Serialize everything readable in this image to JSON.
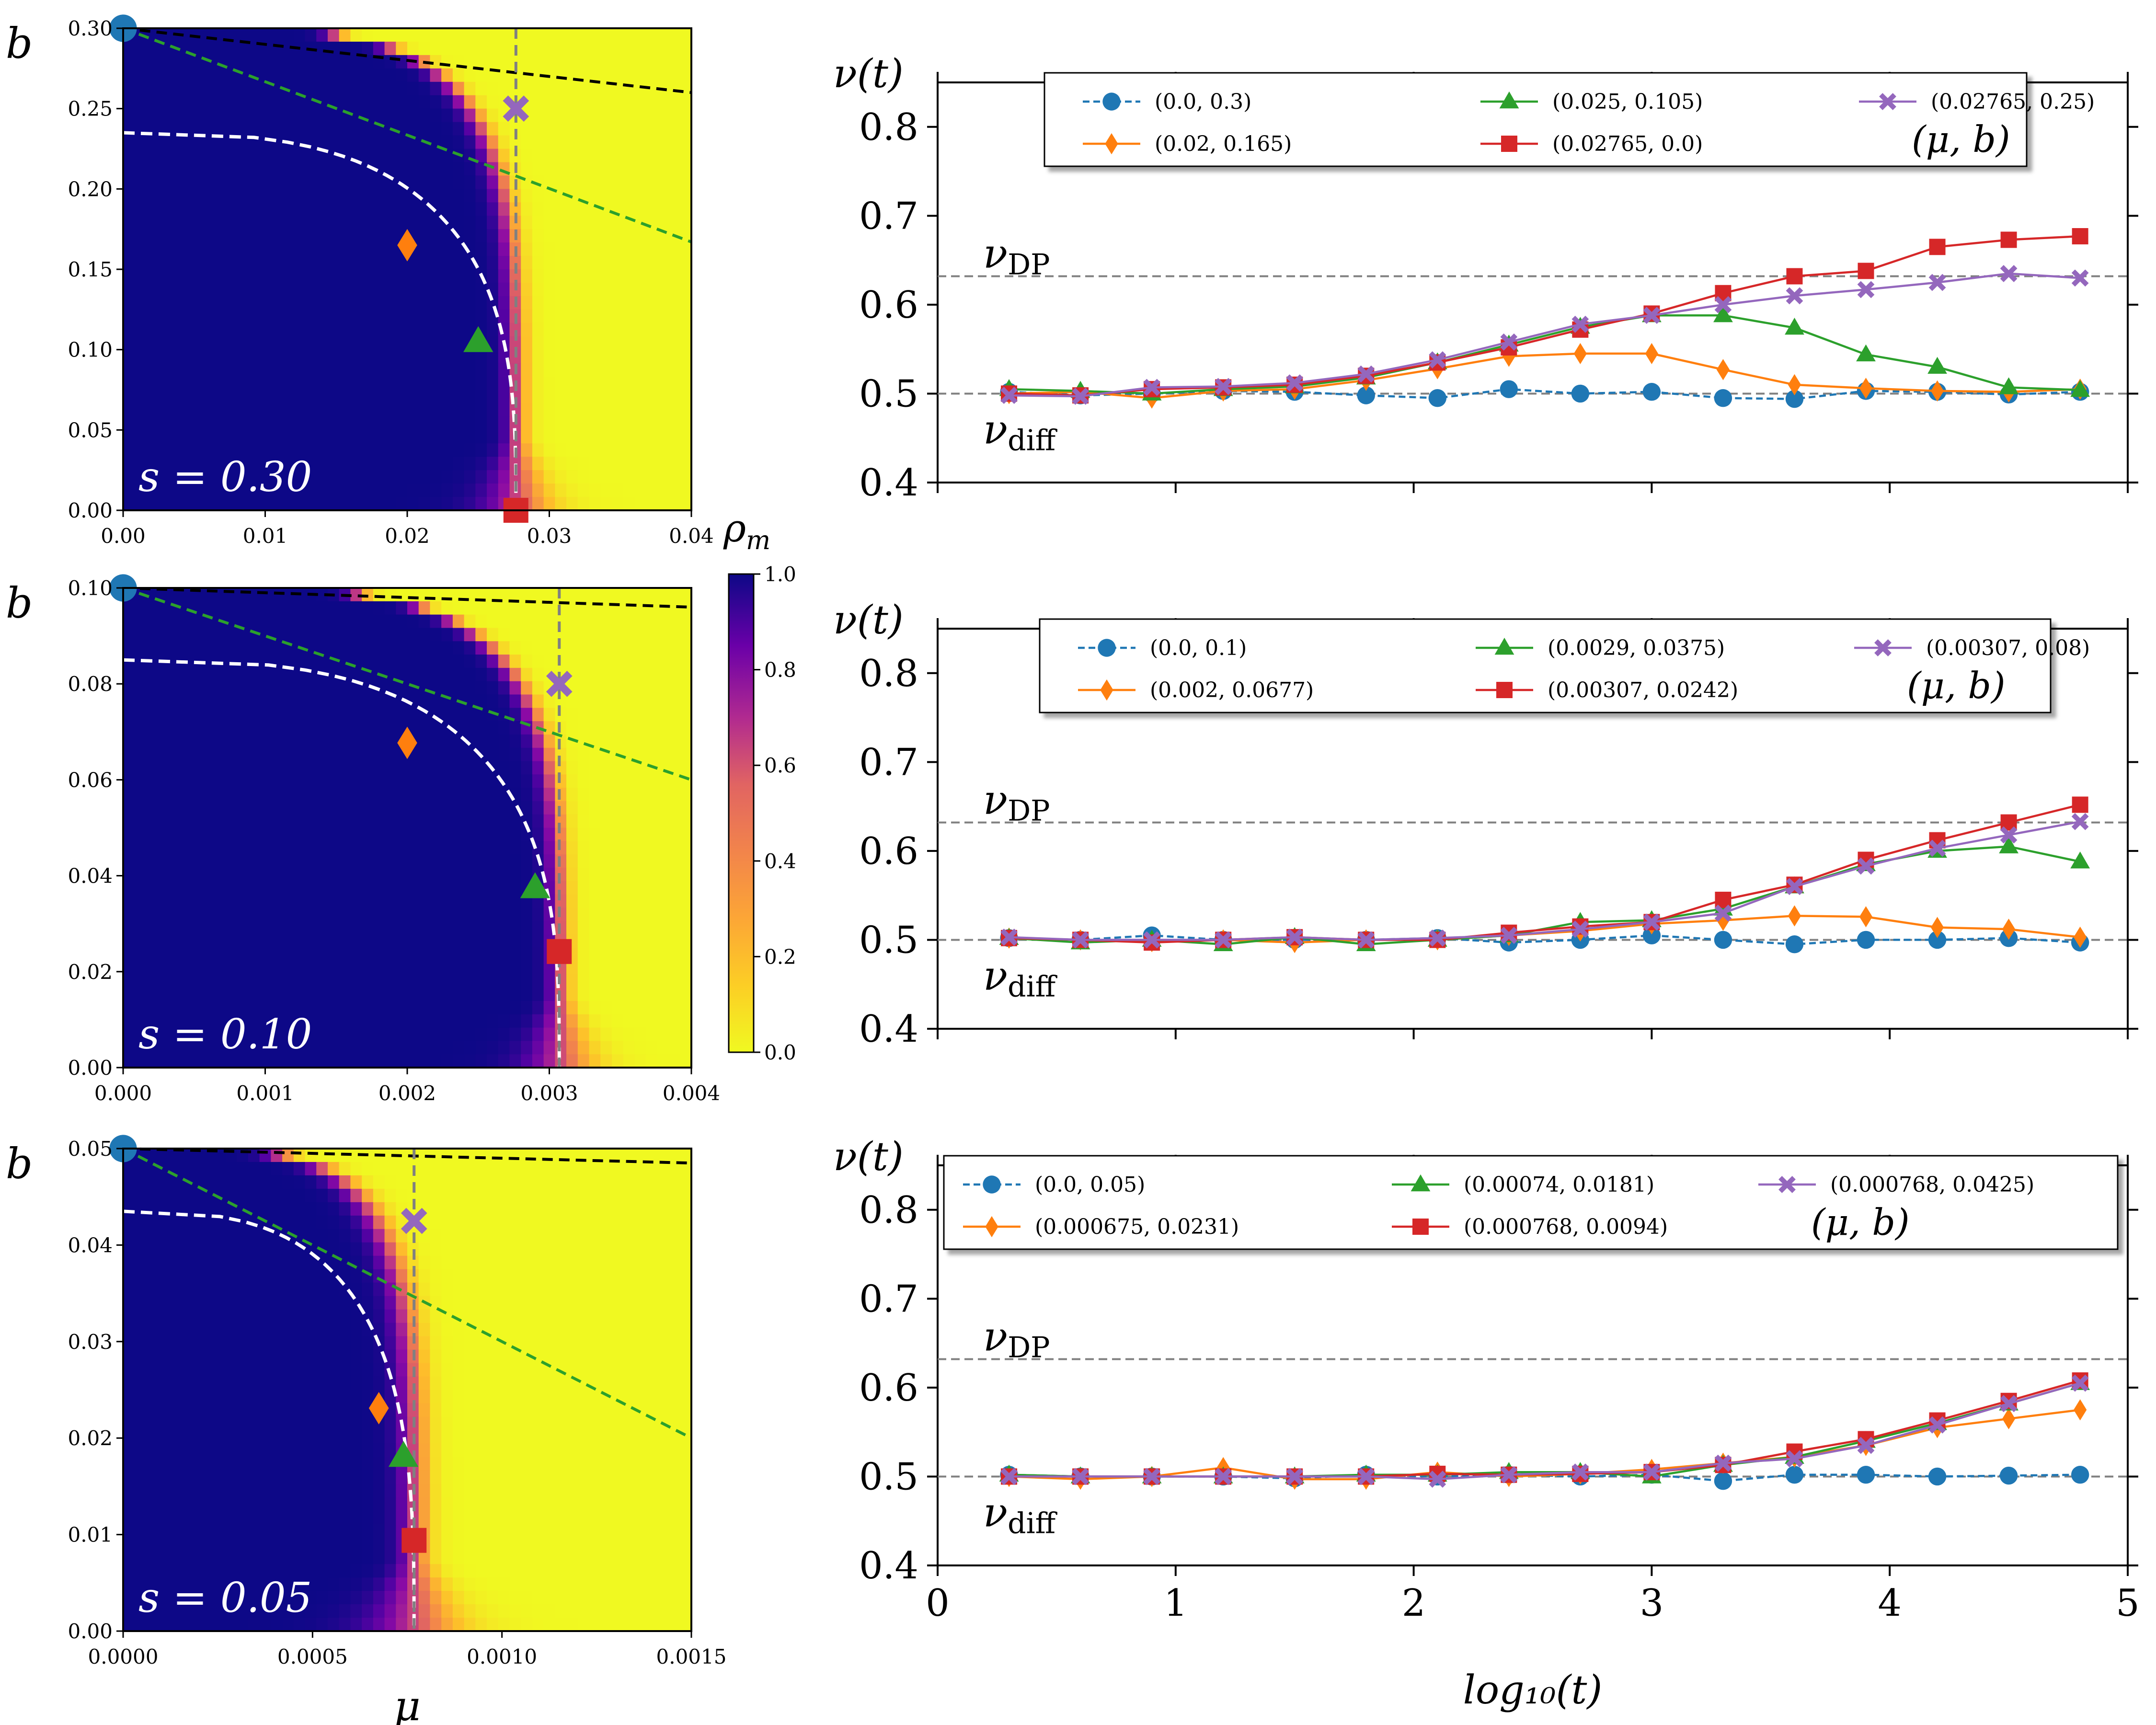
{
  "colors": {
    "blue": "#1f77b4",
    "orange": "#ff7f0e",
    "green": "#2ca02c",
    "red": "#d62728",
    "purple": "#9467bd",
    "gray": "#808080",
    "black": "#000000",
    "dark_navy": "#0d0887",
    "yellow": "#f0f921"
  },
  "colorbar": {
    "label": "ρ_m",
    "label_main": "ρ",
    "label_sub": "m",
    "ticks": [
      0.0,
      0.2,
      0.4,
      0.6,
      0.8,
      1.0
    ],
    "tick_labels": [
      "0.0",
      "0.2",
      "0.4",
      "0.6",
      "0.8",
      "1.0"
    ],
    "vmin": 0.0,
    "vmax": 1.0
  },
  "chart_data": [
    {
      "type": "heatmap",
      "title": "s = 0.30",
      "s_label": "s = 0.30",
      "s": 0.3,
      "xlabel": "",
      "ylabel": "b",
      "xlim": [
        0.0,
        0.04
      ],
      "ylim": [
        0.0,
        0.3
      ],
      "xticks": [
        0.0,
        0.01,
        0.02,
        0.03,
        0.04
      ],
      "xtick_labels": [
        "0.00",
        "0.01",
        "0.02",
        "0.03",
        "0.04"
      ],
      "yticks": [
        0.0,
        0.05,
        0.1,
        0.15,
        0.2,
        0.25,
        0.3
      ],
      "ytick_labels": [
        "0.00",
        "0.05",
        "0.10",
        "0.15",
        "0.20",
        "0.25",
        "0.30"
      ],
      "field": {
        "mu_c": 0.02765,
        "b_c": 0.3,
        "b_dashed": 0.235,
        "dip": 0.003,
        "edge_width": 0.03
      },
      "black_line": [
        [
          0.0,
          0.3
        ],
        [
          0.04,
          0.26
        ]
      ],
      "green_line": [
        [
          0.0,
          0.3
        ],
        [
          0.04,
          0.167
        ]
      ],
      "vertical_line_mu": 0.02765,
      "points": [
        {
          "mu": 0.0,
          "b": 0.3,
          "marker": "circle",
          "color": "blue"
        },
        {
          "mu": 0.02,
          "b": 0.165,
          "marker": "diamond",
          "color": "orange"
        },
        {
          "mu": 0.025,
          "b": 0.105,
          "marker": "triangle",
          "color": "green"
        },
        {
          "mu": 0.02765,
          "b": 0.0,
          "marker": "square",
          "color": "red"
        },
        {
          "mu": 0.02765,
          "b": 0.25,
          "marker": "x",
          "color": "purple"
        }
      ]
    },
    {
      "type": "heatmap",
      "title": "s = 0.10",
      "s_label": "s = 0.10",
      "s": 0.1,
      "xlabel": "",
      "ylabel": "b",
      "xlim": [
        0.0,
        0.004
      ],
      "ylim": [
        0.0,
        0.1
      ],
      "xticks": [
        0.0,
        0.001,
        0.002,
        0.003,
        0.004
      ],
      "xtick_labels": [
        "0.000",
        "0.001",
        "0.002",
        "0.003",
        "0.004"
      ],
      "yticks": [
        0.0,
        0.02,
        0.04,
        0.06,
        0.08,
        0.1
      ],
      "ytick_labels": [
        "0.00",
        "0.02",
        "0.04",
        "0.06",
        "0.08",
        "0.10"
      ],
      "field": {
        "mu_c": 0.00307,
        "b_c": 0.1,
        "b_dashed": 0.085,
        "dip": 0.00055,
        "edge_width": 0.03
      },
      "black_line": [
        [
          0.0,
          0.1
        ],
        [
          0.004,
          0.096
        ]
      ],
      "green_line": [
        [
          0.0,
          0.1
        ],
        [
          0.004,
          0.06
        ]
      ],
      "vertical_line_mu": 0.00307,
      "points": [
        {
          "mu": 0.0,
          "b": 0.1,
          "marker": "circle",
          "color": "blue"
        },
        {
          "mu": 0.002,
          "b": 0.0677,
          "marker": "diamond",
          "color": "orange"
        },
        {
          "mu": 0.0029,
          "b": 0.0375,
          "marker": "triangle",
          "color": "green"
        },
        {
          "mu": 0.00307,
          "b": 0.0242,
          "marker": "square",
          "color": "red"
        },
        {
          "mu": 0.00307,
          "b": 0.08,
          "marker": "x",
          "color": "purple"
        }
      ]
    },
    {
      "type": "heatmap",
      "title": "s = 0.05",
      "s_label": "s = 0.05",
      "s": 0.05,
      "xlabel": "μ",
      "ylabel": "b",
      "xlim": [
        0.0,
        0.0015
      ],
      "ylim": [
        0.0,
        0.05
      ],
      "xticks": [
        0.0,
        0.0005,
        0.001,
        0.0015
      ],
      "xtick_labels": [
        "0.0000",
        "0.0005",
        "0.0010",
        "0.0015"
      ],
      "yticks": [
        0.0,
        0.01,
        0.02,
        0.03,
        0.04,
        0.05
      ],
      "ytick_labels": [
        "0.00",
        "0.01",
        "0.02",
        "0.03",
        "0.04",
        "0.05"
      ],
      "field": {
        "mu_c": 0.000768,
        "b_c": 0.05,
        "b_dashed": 0.0435,
        "dip": 0.00055,
        "edge_width": 0.04
      },
      "black_line": [
        [
          0.0,
          0.05
        ],
        [
          0.0015,
          0.0485
        ]
      ],
      "green_line": [
        [
          0.0,
          0.05
        ],
        [
          0.0015,
          0.02
        ]
      ],
      "vertical_line_mu": 0.000768,
      "points": [
        {
          "mu": 0.0,
          "b": 0.05,
          "marker": "circle",
          "color": "blue"
        },
        {
          "mu": 0.000675,
          "b": 0.0231,
          "marker": "diamond",
          "color": "orange"
        },
        {
          "mu": 0.00074,
          "b": 0.0181,
          "marker": "triangle",
          "color": "green"
        },
        {
          "mu": 0.000768,
          "b": 0.0094,
          "marker": "square",
          "color": "red"
        },
        {
          "mu": 0.000768,
          "b": 0.0425,
          "marker": "x",
          "color": "purple"
        }
      ]
    },
    {
      "type": "line",
      "title": "",
      "xlabel": "",
      "ylabel": "ν(t)",
      "xlim": [
        0,
        5
      ],
      "ylim": [
        0.4,
        0.85
      ],
      "xticks": [
        0,
        1,
        2,
        3,
        4,
        5
      ],
      "xtick_labels": [],
      "yticks": [
        0.4,
        0.5,
        0.6,
        0.7,
        0.8
      ],
      "ytick_labels": [
        "0.4",
        "0.5",
        "0.6",
        "0.7",
        "0.8"
      ],
      "hlines": {
        "nu_DP": 0.632,
        "nu_diff": 0.5
      },
      "legend_title": "(μ, b)",
      "legend_location": "top-center",
      "x": [
        0.3,
        0.6,
        0.9,
        1.2,
        1.5,
        1.8,
        2.1,
        2.4,
        2.7,
        3.0,
        3.3,
        3.6,
        3.9,
        4.2,
        4.5,
        4.8
      ],
      "series": [
        {
          "name": "(0.0, 0.3)",
          "color": "blue",
          "marker": "circle",
          "dashed": true,
          "values": [
            0.502,
            0.498,
            0.5,
            0.503,
            0.502,
            0.498,
            0.495,
            0.505,
            0.5,
            0.502,
            0.495,
            0.494,
            0.503,
            0.502,
            0.499,
            0.502
          ]
        },
        {
          "name": "(0.02, 0.165)",
          "color": "orange",
          "marker": "diamond",
          "dashed": false,
          "values": [
            0.5,
            0.502,
            0.495,
            0.503,
            0.505,
            0.515,
            0.528,
            0.542,
            0.545,
            0.545,
            0.527,
            0.51,
            0.506,
            0.503,
            0.502,
            0.505
          ]
        },
        {
          "name": "(0.025, 0.105)",
          "color": "green",
          "marker": "triangle",
          "dashed": false,
          "values": [
            0.505,
            0.503,
            0.5,
            0.505,
            0.508,
            0.518,
            0.535,
            0.555,
            0.575,
            0.588,
            0.588,
            0.574,
            0.544,
            0.53,
            0.507,
            0.504
          ]
        },
        {
          "name": "(0.02765, 0.0)",
          "color": "red",
          "marker": "square",
          "dashed": false,
          "values": [
            0.5,
            0.498,
            0.505,
            0.507,
            0.51,
            0.52,
            0.535,
            0.552,
            0.572,
            0.59,
            0.613,
            0.632,
            0.638,
            0.665,
            0.673,
            0.677
          ]
        },
        {
          "name": "(0.02765, 0.25)",
          "color": "purple",
          "marker": "x",
          "dashed": false,
          "values": [
            0.498,
            0.497,
            0.507,
            0.508,
            0.512,
            0.522,
            0.538,
            0.558,
            0.578,
            0.588,
            0.6,
            0.61,
            0.617,
            0.625,
            0.635,
            0.63
          ]
        }
      ]
    },
    {
      "type": "line",
      "title": "",
      "xlabel": "",
      "ylabel": "ν(t)",
      "xlim": [
        0,
        5
      ],
      "ylim": [
        0.4,
        0.85
      ],
      "xticks": [
        0,
        1,
        2,
        3,
        4,
        5
      ],
      "xtick_labels": [],
      "yticks": [
        0.4,
        0.5,
        0.6,
        0.7,
        0.8
      ],
      "ytick_labels": [
        "0.4",
        "0.5",
        "0.6",
        "0.7",
        "0.8"
      ],
      "hlines": {
        "nu_DP": 0.632,
        "nu_diff": 0.5
      },
      "legend_title": "(μ, b)",
      "legend_location": "top-center",
      "x": [
        0.3,
        0.6,
        0.9,
        1.2,
        1.5,
        1.8,
        2.1,
        2.4,
        2.7,
        3.0,
        3.3,
        3.6,
        3.9,
        4.2,
        4.5,
        4.8
      ],
      "series": [
        {
          "name": "(0.0, 0.1)",
          "color": "blue",
          "marker": "circle",
          "dashed": true,
          "values": [
            0.502,
            0.5,
            0.505,
            0.5,
            0.5,
            0.5,
            0.502,
            0.497,
            0.5,
            0.505,
            0.5,
            0.495,
            0.5,
            0.5,
            0.502,
            0.497
          ]
        },
        {
          "name": "(0.002, 0.0677)",
          "color": "orange",
          "marker": "diamond",
          "dashed": false,
          "values": [
            0.502,
            0.5,
            0.498,
            0.5,
            0.497,
            0.5,
            0.5,
            0.505,
            0.51,
            0.518,
            0.522,
            0.527,
            0.526,
            0.514,
            0.512,
            0.503
          ]
        },
        {
          "name": "(0.0029, 0.0375)",
          "color": "green",
          "marker": "triangle",
          "dashed": false,
          "values": [
            0.502,
            0.497,
            0.5,
            0.495,
            0.503,
            0.495,
            0.5,
            0.505,
            0.52,
            0.522,
            0.535,
            0.56,
            0.585,
            0.6,
            0.605,
            0.588
          ]
        },
        {
          "name": "(0.00307, 0.0242)",
          "color": "red",
          "marker": "square",
          "dashed": false,
          "values": [
            0.502,
            0.5,
            0.497,
            0.5,
            0.503,
            0.5,
            0.5,
            0.508,
            0.515,
            0.52,
            0.545,
            0.562,
            0.59,
            0.612,
            0.632,
            0.652
          ]
        },
        {
          "name": "(0.00307, 0.08)",
          "color": "purple",
          "marker": "x",
          "dashed": false,
          "values": [
            0.503,
            0.5,
            0.5,
            0.5,
            0.503,
            0.5,
            0.502,
            0.505,
            0.512,
            0.52,
            0.53,
            0.56,
            0.583,
            0.603,
            0.618,
            0.633
          ]
        }
      ]
    },
    {
      "type": "line",
      "title": "",
      "xlabel": "log₁₀(t)",
      "ylabel": "ν(t)",
      "xlim": [
        0,
        5
      ],
      "ylim": [
        0.4,
        0.85
      ],
      "xticks": [
        0,
        1,
        2,
        3,
        4,
        5
      ],
      "xtick_labels": [
        "0",
        "1",
        "2",
        "3",
        "4",
        "5"
      ],
      "yticks": [
        0.4,
        0.5,
        0.6,
        0.7,
        0.8
      ],
      "ytick_labels": [
        "0.4",
        "0.5",
        "0.6",
        "0.7",
        "0.8"
      ],
      "hlines": {
        "nu_DP": 0.632,
        "nu_diff": 0.5
      },
      "legend_title": "(μ, b)",
      "legend_location": "top-center",
      "x": [
        0.3,
        0.6,
        0.9,
        1.2,
        1.5,
        1.8,
        2.1,
        2.4,
        2.7,
        3.0,
        3.3,
        3.6,
        3.9,
        4.2,
        4.5,
        4.8
      ],
      "series": [
        {
          "name": "(0.0, 0.05)",
          "color": "blue",
          "marker": "circle",
          "dashed": true,
          "values": [
            0.502,
            0.5,
            0.5,
            0.5,
            0.498,
            0.502,
            0.5,
            0.502,
            0.5,
            0.502,
            0.495,
            0.502,
            0.502,
            0.5,
            0.501,
            0.502
          ]
        },
        {
          "name": "(0.000675, 0.0231)",
          "color": "orange",
          "marker": "diamond",
          "dashed": false,
          "values": [
            0.5,
            0.497,
            0.5,
            0.51,
            0.497,
            0.497,
            0.505,
            0.5,
            0.503,
            0.508,
            0.515,
            0.522,
            0.535,
            0.555,
            0.565,
            0.575
          ]
        },
        {
          "name": "(0.00074, 0.0181)",
          "color": "green",
          "marker": "triangle",
          "dashed": false,
          "values": [
            0.502,
            0.5,
            0.5,
            0.5,
            0.5,
            0.502,
            0.502,
            0.505,
            0.505,
            0.5,
            0.513,
            0.522,
            0.54,
            0.56,
            0.582,
            0.605
          ]
        },
        {
          "name": "(0.000768, 0.0094)",
          "color": "red",
          "marker": "square",
          "dashed": false,
          "values": [
            0.5,
            0.5,
            0.5,
            0.5,
            0.5,
            0.5,
            0.503,
            0.502,
            0.503,
            0.505,
            0.513,
            0.528,
            0.542,
            0.563,
            0.585,
            0.608
          ]
        },
        {
          "name": "(0.000768, 0.0425)",
          "color": "purple",
          "marker": "x",
          "dashed": false,
          "values": [
            0.5,
            0.5,
            0.5,
            0.5,
            0.5,
            0.5,
            0.497,
            0.502,
            0.505,
            0.505,
            0.515,
            0.52,
            0.535,
            0.558,
            0.582,
            0.605
          ]
        }
      ]
    }
  ]
}
